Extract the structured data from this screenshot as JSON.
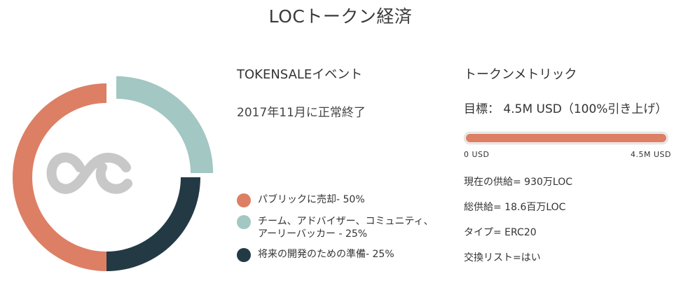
{
  "page": {
    "title": "LOCトークン経済"
  },
  "token_sale": {
    "heading": "TOKENSALEイベント",
    "status": "2017年11月に正常終了"
  },
  "distribution": {
    "logo_text": "oc",
    "items": [
      {
        "label": "パブリックに売却- 50%",
        "percent": 50,
        "color": "#dd7f64"
      },
      {
        "label": "チーム、アドバイザー、コミュニティ、アーリーバッカー - 25%",
        "percent": 25,
        "color": "#a3c7c2"
      },
      {
        "label": "将来の開発のための準備- 25%",
        "percent": 25,
        "color": "#233a45"
      }
    ]
  },
  "metrics": {
    "heading": "トークンメトリック",
    "target": "目標： 4.5M USD（100%引き上げ）",
    "progress": {
      "fraction": 1.0,
      "min_label": "0 USD",
      "max_label": "4.5M USD",
      "color": "#dd7f64"
    },
    "current_supply": "現在の供給= 930万LOC",
    "total_supply": "総供給= 18.6百万LOC",
    "type": "タイプ= ERC20",
    "exchange": "交換リスト=はい"
  }
}
